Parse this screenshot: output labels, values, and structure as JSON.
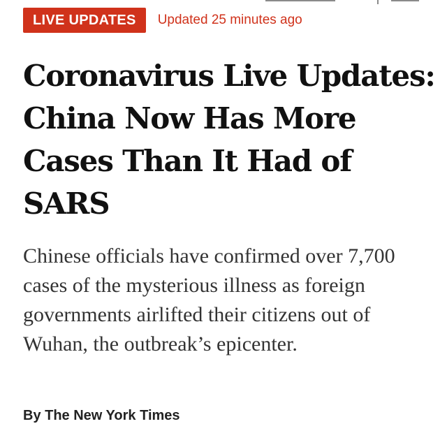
{
  "badge": {
    "label": "LIVE UPDATES",
    "color": "#d0321b"
  },
  "updated": "Updated 25 minutes ago",
  "headline": "Coronavirus Live Updates: China Now Has More Cases Than It Had of SARS",
  "summary": "Chinese officials have confirmed over 7,700 cases of the mysterious illness as foreign governments airlifted their citizens out of Wuhan, the outbreak’s epicenter.",
  "byline": "By The New York Times",
  "colors": {
    "accent": "#d0321b",
    "headline_text": "#111111",
    "summary_text": "#333333"
  }
}
